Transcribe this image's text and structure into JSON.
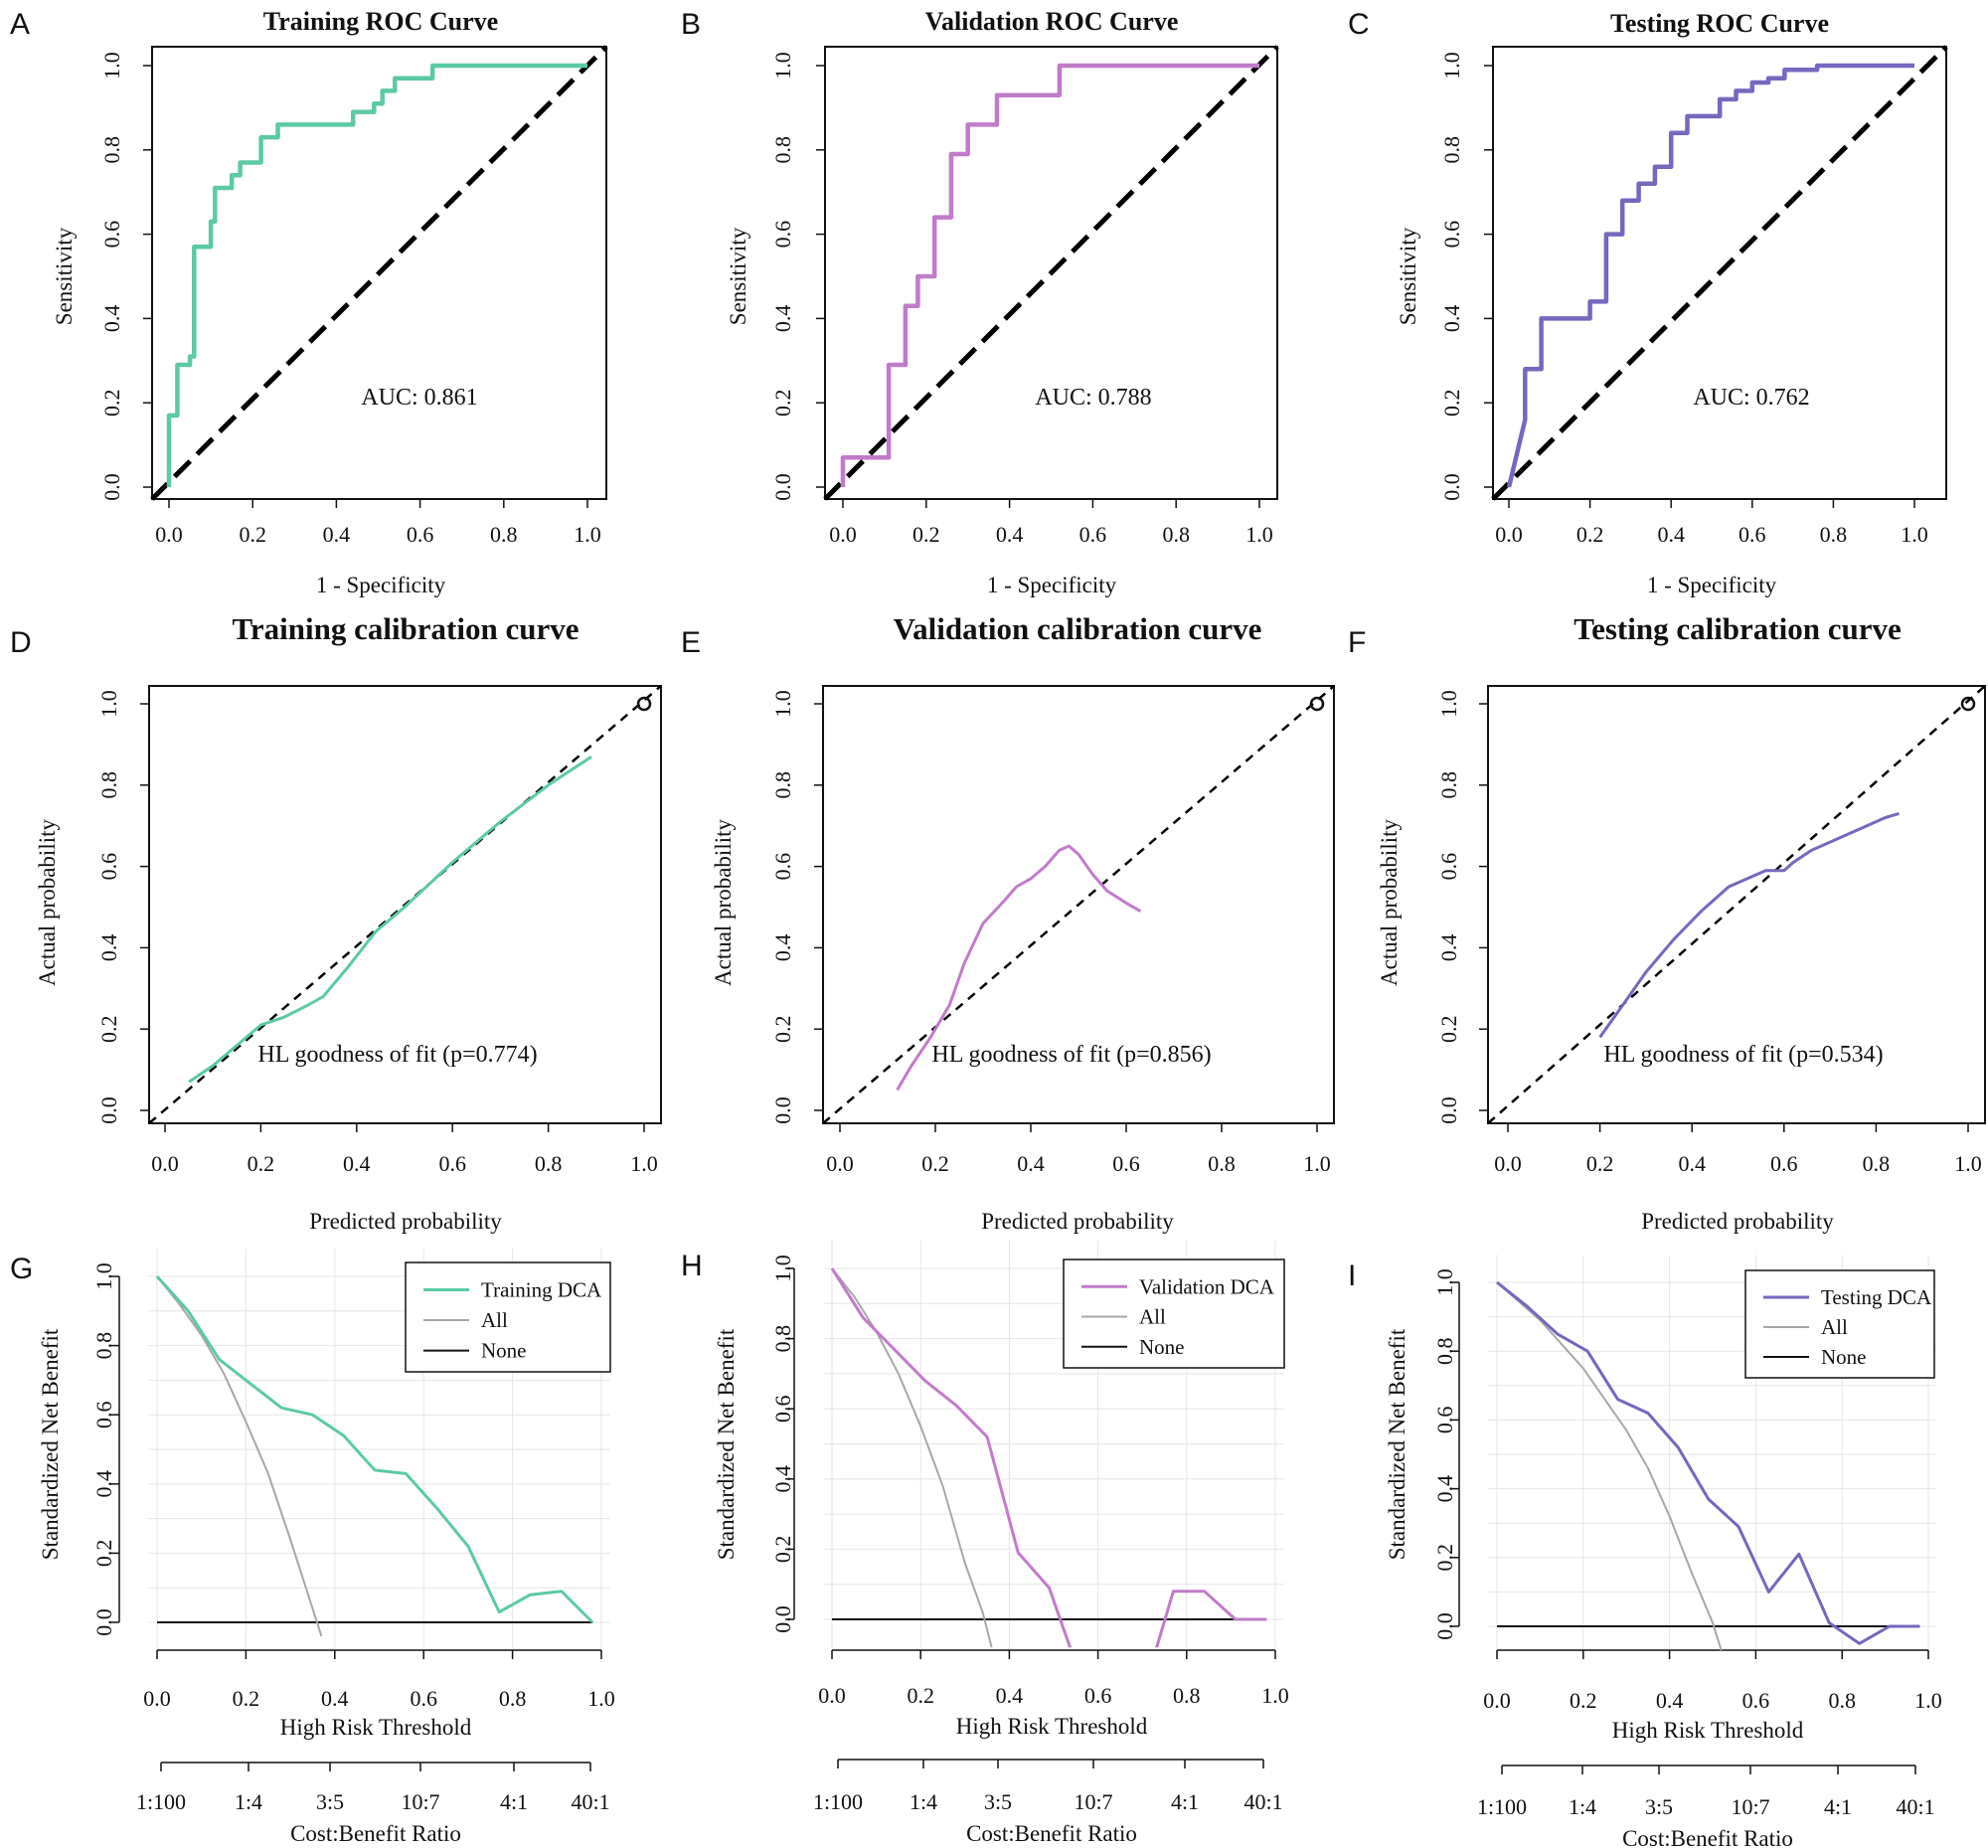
{
  "figure": {
    "panel_letters": [
      "A",
      "B",
      "C",
      "D",
      "E",
      "F",
      "G",
      "H",
      "I"
    ],
    "colors": {
      "training": "#5CC9A7",
      "validation": "#C07CC9",
      "testing": "#7468BF",
      "all_line": "#A8A8A8",
      "none_line": "#111111",
      "diagonal": "#000000",
      "grid": "#E6E6E6"
    }
  },
  "chart_data": [
    {
      "panel": "A",
      "type": "line",
      "kind": "roc",
      "color_key": "training",
      "title": "Training ROC Curve",
      "xlabel": "1 - Specificity",
      "ylabel": "Sensitivity",
      "xlim": [
        0,
        1
      ],
      "ylim": [
        0,
        1
      ],
      "xticks": [
        "0.0",
        "0.2",
        "0.4",
        "0.6",
        "0.8",
        "1.0"
      ],
      "yticks": [
        "0.0",
        "0.2",
        "0.4",
        "0.6",
        "0.8",
        "1.0"
      ],
      "annotation": "AUC: 0.861",
      "x": [
        0,
        0,
        0.02,
        0.02,
        0.05,
        0.05,
        0.06,
        0.06,
        0.1,
        0.1,
        0.11,
        0.11,
        0.15,
        0.15,
        0.17,
        0.17,
        0.22,
        0.22,
        0.26,
        0.26,
        0.44,
        0.44,
        0.49,
        0.49,
        0.51,
        0.51,
        0.54,
        0.54,
        0.63,
        0.63,
        1.0
      ],
      "y": [
        0,
        0.17,
        0.17,
        0.29,
        0.29,
        0.31,
        0.31,
        0.57,
        0.57,
        0.63,
        0.63,
        0.71,
        0.71,
        0.74,
        0.74,
        0.77,
        0.77,
        0.83,
        0.83,
        0.86,
        0.86,
        0.89,
        0.89,
        0.91,
        0.91,
        0.94,
        0.94,
        0.97,
        0.97,
        1.0,
        1.0
      ]
    },
    {
      "panel": "B",
      "type": "line",
      "kind": "roc",
      "color_key": "validation",
      "title": "Validation ROC Curve",
      "xlabel": "1 - Specificity",
      "ylabel": "Sensitivity",
      "xlim": [
        0,
        1
      ],
      "ylim": [
        0,
        1
      ],
      "xticks": [
        "0.0",
        "0.2",
        "0.4",
        "0.6",
        "0.8",
        "1.0"
      ],
      "yticks": [
        "0.0",
        "0.2",
        "0.4",
        "0.6",
        "0.8",
        "1.0"
      ],
      "annotation": "AUC: 0.788",
      "x": [
        0,
        0,
        0.11,
        0.11,
        0.15,
        0.15,
        0.18,
        0.18,
        0.22,
        0.22,
        0.26,
        0.26,
        0.3,
        0.3,
        0.37,
        0.37,
        0.52,
        0.52,
        1.0
      ],
      "y": [
        0,
        0.07,
        0.07,
        0.29,
        0.29,
        0.43,
        0.43,
        0.5,
        0.5,
        0.64,
        0.64,
        0.79,
        0.79,
        0.86,
        0.86,
        0.93,
        0.93,
        1.0,
        1.0
      ]
    },
    {
      "panel": "C",
      "type": "line",
      "kind": "roc",
      "color_key": "testing",
      "title": "Testing ROC Curve",
      "xlabel": "1 - Specificity",
      "ylabel": "Sensitivity",
      "xlim": [
        0,
        1
      ],
      "ylim": [
        0,
        1
      ],
      "xticks": [
        "0.0",
        "0.2",
        "0.4",
        "0.6",
        "0.8",
        "1.0"
      ],
      "yticks": [
        "0.0",
        "0.2",
        "0.4",
        "0.6",
        "0.8",
        "1.0"
      ],
      "annotation": "AUC: 0.762",
      "x": [
        0,
        0.04,
        0.04,
        0.08,
        0.08,
        0.2,
        0.2,
        0.24,
        0.24,
        0.28,
        0.28,
        0.32,
        0.32,
        0.36,
        0.36,
        0.4,
        0.4,
        0.44,
        0.44,
        0.52,
        0.52,
        0.56,
        0.56,
        0.6,
        0.6,
        0.64,
        0.64,
        0.68,
        0.68,
        0.76,
        0.76,
        1.0
      ],
      "y": [
        0,
        0.16,
        0.28,
        0.28,
        0.4,
        0.4,
        0.44,
        0.44,
        0.6,
        0.6,
        0.68,
        0.68,
        0.72,
        0.72,
        0.76,
        0.76,
        0.84,
        0.84,
        0.88,
        0.88,
        0.92,
        0.92,
        0.94,
        0.94,
        0.96,
        0.96,
        0.97,
        0.97,
        0.99,
        0.99,
        1.0,
        1.0
      ]
    },
    {
      "panel": "D",
      "type": "line",
      "kind": "calibration",
      "color_key": "training",
      "title": "Training calibration curve",
      "xlabel": "Predicted probability",
      "ylabel": "Actual probability",
      "xlim": [
        0,
        1
      ],
      "ylim": [
        0,
        1
      ],
      "xticks": [
        "0.0",
        "0.2",
        "0.4",
        "0.6",
        "0.8",
        "1.0"
      ],
      "yticks": [
        "0.0",
        "0.2",
        "0.4",
        "0.6",
        "0.8",
        "1.0"
      ],
      "annotation": "HL goodness of fit (p=0.774)",
      "x": [
        0.05,
        0.1,
        0.15,
        0.2,
        0.25,
        0.3,
        0.33,
        0.38,
        0.44,
        0.5,
        0.6,
        0.7,
        0.8,
        0.89
      ],
      "y": [
        0.07,
        0.11,
        0.16,
        0.21,
        0.23,
        0.26,
        0.28,
        0.35,
        0.44,
        0.5,
        0.61,
        0.71,
        0.8,
        0.87
      ]
    },
    {
      "panel": "E",
      "type": "line",
      "kind": "calibration",
      "color_key": "validation",
      "title": "Validation calibration curve",
      "xlabel": "Predicted probability",
      "ylabel": "Actual probability",
      "xlim": [
        0,
        1
      ],
      "ylim": [
        0,
        1
      ],
      "xticks": [
        "0.0",
        "0.2",
        "0.4",
        "0.6",
        "0.8",
        "1.0"
      ],
      "yticks": [
        "0.0",
        "0.2",
        "0.4",
        "0.6",
        "0.8",
        "1.0"
      ],
      "annotation": "HL goodness of fit (p=0.856)",
      "x": [
        0.12,
        0.15,
        0.19,
        0.23,
        0.26,
        0.3,
        0.34,
        0.37,
        0.4,
        0.43,
        0.46,
        0.48,
        0.5,
        0.53,
        0.56,
        0.6,
        0.63
      ],
      "y": [
        0.05,
        0.11,
        0.18,
        0.26,
        0.36,
        0.46,
        0.51,
        0.55,
        0.57,
        0.6,
        0.64,
        0.65,
        0.63,
        0.58,
        0.54,
        0.51,
        0.49
      ]
    },
    {
      "panel": "F",
      "type": "line",
      "kind": "calibration",
      "color_key": "testing",
      "title": "Testing calibration curve",
      "xlabel": "Predicted probability",
      "ylabel": "Actual probability",
      "xlim": [
        0,
        1
      ],
      "ylim": [
        0,
        1
      ],
      "xticks": [
        "0.0",
        "0.2",
        "0.4",
        "0.6",
        "0.8",
        "1.0"
      ],
      "yticks": [
        "0.0",
        "0.2",
        "0.4",
        "0.6",
        "0.8",
        "1.0"
      ],
      "annotation": "HL goodness of fit (p=0.534)",
      "x": [
        0.2,
        0.25,
        0.3,
        0.36,
        0.42,
        0.48,
        0.52,
        0.56,
        0.6,
        0.62,
        0.66,
        0.72,
        0.78,
        0.82,
        0.85
      ],
      "y": [
        0.18,
        0.26,
        0.34,
        0.42,
        0.49,
        0.55,
        0.57,
        0.59,
        0.59,
        0.61,
        0.64,
        0.67,
        0.7,
        0.72,
        0.73
      ]
    },
    {
      "panel": "G",
      "type": "line",
      "kind": "dca",
      "color_key": "training",
      "xlabel": "High Risk Threshold",
      "ylabel": "Standardized Net Benefit",
      "cost_label": "Cost:Benefit Ratio",
      "xlim": [
        0,
        1
      ],
      "ylim": [
        0,
        1
      ],
      "xticks": [
        "0.0",
        "0.2",
        "0.4",
        "0.6",
        "0.8",
        "1.0"
      ],
      "yticks": [
        "0.0",
        "0.2",
        "0.4",
        "0.6",
        "0.8",
        "1.0"
      ],
      "ratio_ticks": [
        "1:100",
        "1:4",
        "3:5",
        "10:7",
        "4:1",
        "40:1"
      ],
      "legend": [
        "Training DCA",
        "All",
        "None"
      ],
      "model": {
        "x": [
          0.0,
          0.07,
          0.14,
          0.21,
          0.28,
          0.35,
          0.42,
          0.49,
          0.56,
          0.63,
          0.7,
          0.77,
          0.84,
          0.91,
          0.98
        ],
        "y": [
          1.0,
          0.9,
          0.76,
          0.69,
          0.62,
          0.6,
          0.54,
          0.44,
          0.43,
          0.33,
          0.22,
          0.03,
          0.08,
          0.09,
          0.0
        ]
      },
      "all": {
        "x": [
          0.0,
          0.05,
          0.1,
          0.15,
          0.2,
          0.25,
          0.3,
          0.34,
          0.37
        ],
        "y": [
          1.0,
          0.92,
          0.83,
          0.72,
          0.58,
          0.43,
          0.24,
          0.08,
          -0.04
        ]
      },
      "none": {
        "x": [
          0.0,
          0.98
        ],
        "y": [
          0.0,
          0.0
        ]
      }
    },
    {
      "panel": "H",
      "type": "line",
      "kind": "dca",
      "color_key": "validation",
      "xlabel": "High Risk Threshold",
      "ylabel": "Standardized Net Benefit",
      "cost_label": "Cost:Benefit Ratio",
      "xlim": [
        0,
        1
      ],
      "ylim": [
        0,
        1
      ],
      "xticks": [
        "0.0",
        "0.2",
        "0.4",
        "0.6",
        "0.8",
        "1.0"
      ],
      "yticks": [
        "0.0",
        "0.2",
        "0.4",
        "0.6",
        "0.8",
        "1.0"
      ],
      "ratio_ticks": [
        "1:100",
        "1:4",
        "3:5",
        "10:7",
        "4:1",
        "40:1"
      ],
      "legend": [
        "Validation DCA",
        "All",
        "None"
      ],
      "model": {
        "x": [
          0.0,
          0.07,
          0.14,
          0.21,
          0.28,
          0.35,
          0.42,
          0.49,
          0.54,
          0.73,
          0.77,
          0.84,
          0.91,
          0.98
        ],
        "y": [
          1.0,
          0.86,
          0.77,
          0.68,
          0.61,
          0.52,
          0.19,
          0.09,
          -0.09,
          -0.09,
          0.08,
          0.08,
          0.0,
          0.0
        ]
      },
      "all": {
        "x": [
          0.0,
          0.05,
          0.1,
          0.15,
          0.2,
          0.25,
          0.3,
          0.34,
          0.36
        ],
        "y": [
          1.0,
          0.92,
          0.82,
          0.7,
          0.55,
          0.38,
          0.16,
          0.02,
          -0.08
        ]
      },
      "none": {
        "x": [
          0.0,
          0.98
        ],
        "y": [
          0.0,
          0.0
        ]
      }
    },
    {
      "panel": "I",
      "type": "line",
      "kind": "dca",
      "color_key": "testing",
      "xlabel": "High Risk Threshold",
      "ylabel": "Standardized Net Benefit",
      "cost_label": "Cost:Benefit Ratio",
      "xlim": [
        0,
        1
      ],
      "ylim": [
        0,
        1
      ],
      "xticks": [
        "0.0",
        "0.2",
        "0.4",
        "0.6",
        "0.8",
        "1.0"
      ],
      "yticks": [
        "0.0",
        "0.2",
        "0.4",
        "0.6",
        "0.8",
        "1.0"
      ],
      "ratio_ticks": [
        "1:100",
        "1:4",
        "3:5",
        "10:7",
        "4:1",
        "40:1"
      ],
      "legend": [
        "Testing DCA",
        "All",
        "None"
      ],
      "model": {
        "x": [
          0.0,
          0.07,
          0.14,
          0.21,
          0.28,
          0.35,
          0.42,
          0.49,
          0.56,
          0.63,
          0.7,
          0.77,
          0.84,
          0.91,
          0.98
        ],
        "y": [
          1.0,
          0.93,
          0.85,
          0.8,
          0.66,
          0.62,
          0.52,
          0.37,
          0.29,
          0.1,
          0.21,
          0.01,
          -0.05,
          0.0,
          0.0
        ]
      },
      "all": {
        "x": [
          0.0,
          0.1,
          0.2,
          0.3,
          0.35,
          0.4,
          0.45,
          0.5,
          0.52
        ],
        "y": [
          1.0,
          0.89,
          0.75,
          0.57,
          0.46,
          0.32,
          0.16,
          0.01,
          -0.07
        ]
      },
      "none": {
        "x": [
          0.0,
          0.98
        ],
        "y": [
          0.0,
          0.0
        ]
      }
    }
  ]
}
